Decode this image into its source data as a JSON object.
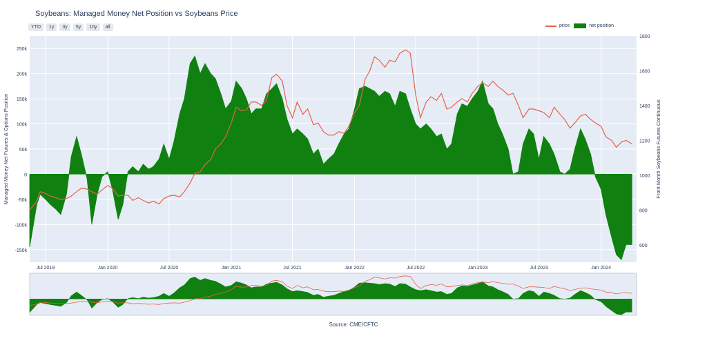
{
  "chart_data": {
    "type": "area",
    "title": "Soybeans: Managed Money Net Position vs Soybeans Price",
    "ylabel": "Managed Money Net Futures & Options Position",
    "y2label": "Front Month Soybeans Futures Continuous",
    "ylim": [
      -175000,
      275000
    ],
    "y2lim": [
      500,
      1800
    ],
    "y_ticks": [
      -150000,
      -100000,
      -50000,
      0,
      50000,
      100000,
      150000,
      200000,
      250000
    ],
    "y_tick_labels": [
      "-150k",
      "-100k",
      "-50k",
      "0",
      "50k",
      "100k",
      "150k",
      "200k",
      "250k"
    ],
    "y2_ticks": [
      600,
      800,
      1000,
      1200,
      1400,
      1600,
      1800
    ],
    "x_range": [
      "2019-05-15",
      "2024-04-15"
    ],
    "x_ticks": [
      "2019-07-01",
      "2020-01-01",
      "2020-07-01",
      "2021-01-01",
      "2021-07-01",
      "2022-01-01",
      "2022-07-01",
      "2023-01-01",
      "2023-07-01",
      "2024-01-01"
    ],
    "x_tick_labels": [
      "Jul 2019",
      "Jan 2020",
      "Jul 2020",
      "Jan 2021",
      "Jul 2021",
      "Jan 2022",
      "Jul 2022",
      "Jan 2023",
      "Jul 2023",
      "Jan 2024"
    ],
    "legend_position": "top-right",
    "grid": true,
    "series": [
      {
        "name": "price",
        "color": "#e8614a",
        "points": [
          [
            "2019-05-15",
            800
          ],
          [
            "2019-06-05",
            850
          ],
          [
            "2019-06-15",
            905
          ],
          [
            "2019-07-01",
            895
          ],
          [
            "2019-07-15",
            880
          ],
          [
            "2019-08-01",
            870
          ],
          [
            "2019-08-15",
            860
          ],
          [
            "2019-09-01",
            865
          ],
          [
            "2019-09-15",
            880
          ],
          [
            "2019-10-01",
            905
          ],
          [
            "2019-10-15",
            925
          ],
          [
            "2019-11-01",
            920
          ],
          [
            "2019-11-15",
            905
          ],
          [
            "2019-12-01",
            890
          ],
          [
            "2019-12-15",
            915
          ],
          [
            "2020-01-01",
            940
          ],
          [
            "2020-01-15",
            925
          ],
          [
            "2020-02-01",
            880
          ],
          [
            "2020-02-15",
            885
          ],
          [
            "2020-03-01",
            885
          ],
          [
            "2020-03-15",
            855
          ],
          [
            "2020-04-01",
            870
          ],
          [
            "2020-04-15",
            855
          ],
          [
            "2020-05-01",
            840
          ],
          [
            "2020-05-15",
            850
          ],
          [
            "2020-06-01",
            835
          ],
          [
            "2020-06-15",
            865
          ],
          [
            "2020-07-01",
            880
          ],
          [
            "2020-07-15",
            885
          ],
          [
            "2020-08-01",
            875
          ],
          [
            "2020-08-15",
            905
          ],
          [
            "2020-09-01",
            955
          ],
          [
            "2020-09-15",
            1010
          ],
          [
            "2020-10-01",
            1020
          ],
          [
            "2020-10-15",
            1060
          ],
          [
            "2020-11-01",
            1090
          ],
          [
            "2020-11-15",
            1150
          ],
          [
            "2020-12-01",
            1180
          ],
          [
            "2020-12-15",
            1220
          ],
          [
            "2021-01-01",
            1300
          ],
          [
            "2021-01-15",
            1390
          ],
          [
            "2021-02-01",
            1370
          ],
          [
            "2021-02-15",
            1375
          ],
          [
            "2021-03-01",
            1420
          ],
          [
            "2021-03-15",
            1420
          ],
          [
            "2021-04-01",
            1400
          ],
          [
            "2021-04-15",
            1430
          ],
          [
            "2021-05-01",
            1560
          ],
          [
            "2021-05-15",
            1580
          ],
          [
            "2021-06-01",
            1540
          ],
          [
            "2021-06-15",
            1400
          ],
          [
            "2021-07-01",
            1330
          ],
          [
            "2021-07-15",
            1420
          ],
          [
            "2021-08-01",
            1350
          ],
          [
            "2021-08-15",
            1380
          ],
          [
            "2021-09-01",
            1290
          ],
          [
            "2021-09-15",
            1300
          ],
          [
            "2021-10-01",
            1250
          ],
          [
            "2021-10-15",
            1230
          ],
          [
            "2021-11-01",
            1230
          ],
          [
            "2021-11-15",
            1250
          ],
          [
            "2021-12-01",
            1240
          ],
          [
            "2021-12-15",
            1280
          ],
          [
            "2022-01-01",
            1360
          ],
          [
            "2022-01-15",
            1400
          ],
          [
            "2022-02-01",
            1550
          ],
          [
            "2022-02-15",
            1600
          ],
          [
            "2022-03-01",
            1680
          ],
          [
            "2022-03-15",
            1660
          ],
          [
            "2022-04-01",
            1620
          ],
          [
            "2022-04-15",
            1660
          ],
          [
            "2022-05-01",
            1650
          ],
          [
            "2022-05-15",
            1700
          ],
          [
            "2022-06-01",
            1720
          ],
          [
            "2022-06-15",
            1700
          ],
          [
            "2022-07-01",
            1460
          ],
          [
            "2022-07-15",
            1330
          ],
          [
            "2022-08-01",
            1420
          ],
          [
            "2022-08-15",
            1450
          ],
          [
            "2022-09-01",
            1430
          ],
          [
            "2022-09-15",
            1470
          ],
          [
            "2022-10-01",
            1380
          ],
          [
            "2022-10-15",
            1390
          ],
          [
            "2022-11-01",
            1420
          ],
          [
            "2022-11-15",
            1440
          ],
          [
            "2022-12-01",
            1420
          ],
          [
            "2022-12-15",
            1470
          ],
          [
            "2023-01-01",
            1510
          ],
          [
            "2023-01-15",
            1530
          ],
          [
            "2023-02-01",
            1510
          ],
          [
            "2023-02-15",
            1540
          ],
          [
            "2023-03-01",
            1510
          ],
          [
            "2023-03-15",
            1490
          ],
          [
            "2023-04-01",
            1460
          ],
          [
            "2023-04-15",
            1470
          ],
          [
            "2023-05-01",
            1400
          ],
          [
            "2023-05-15",
            1330
          ],
          [
            "2023-06-01",
            1380
          ],
          [
            "2023-06-15",
            1380
          ],
          [
            "2023-07-01",
            1370
          ],
          [
            "2023-07-15",
            1360
          ],
          [
            "2023-08-01",
            1330
          ],
          [
            "2023-08-15",
            1390
          ],
          [
            "2023-09-01",
            1350
          ],
          [
            "2023-09-15",
            1320
          ],
          [
            "2023-10-01",
            1270
          ],
          [
            "2023-10-15",
            1300
          ],
          [
            "2023-11-01",
            1340
          ],
          [
            "2023-11-15",
            1350
          ],
          [
            "2023-12-01",
            1320
          ],
          [
            "2023-12-15",
            1300
          ],
          [
            "2024-01-01",
            1280
          ],
          [
            "2024-01-15",
            1220
          ],
          [
            "2024-02-01",
            1200
          ],
          [
            "2024-02-15",
            1160
          ],
          [
            "2024-03-01",
            1190
          ],
          [
            "2024-03-15",
            1200
          ],
          [
            "2024-04-01",
            1180
          ]
        ]
      },
      {
        "name": "net position",
        "color": "#108010",
        "points": [
          [
            "2019-05-15",
            -145000
          ],
          [
            "2019-06-05",
            -60000
          ],
          [
            "2019-06-15",
            -40000
          ],
          [
            "2019-07-01",
            -50000
          ],
          [
            "2019-07-15",
            -60000
          ],
          [
            "2019-08-01",
            -70000
          ],
          [
            "2019-08-15",
            -80000
          ],
          [
            "2019-09-01",
            -40000
          ],
          [
            "2019-09-15",
            35000
          ],
          [
            "2019-10-01",
            75000
          ],
          [
            "2019-10-15",
            40000
          ],
          [
            "2019-11-01",
            -10000
          ],
          [
            "2019-11-15",
            -100000
          ],
          [
            "2019-12-01",
            -40000
          ],
          [
            "2019-12-15",
            -5000
          ],
          [
            "2020-01-01",
            5000
          ],
          [
            "2020-01-15",
            -30000
          ],
          [
            "2020-02-01",
            -90000
          ],
          [
            "2020-02-15",
            -60000
          ],
          [
            "2020-03-01",
            5000
          ],
          [
            "2020-03-15",
            15000
          ],
          [
            "2020-04-01",
            5000
          ],
          [
            "2020-04-15",
            20000
          ],
          [
            "2020-05-01",
            10000
          ],
          [
            "2020-05-15",
            15000
          ],
          [
            "2020-06-01",
            30000
          ],
          [
            "2020-06-15",
            60000
          ],
          [
            "2020-07-01",
            30000
          ],
          [
            "2020-07-15",
            65000
          ],
          [
            "2020-08-01",
            120000
          ],
          [
            "2020-08-15",
            150000
          ],
          [
            "2020-09-01",
            220000
          ],
          [
            "2020-09-15",
            235000
          ],
          [
            "2020-10-01",
            200000
          ],
          [
            "2020-10-15",
            220000
          ],
          [
            "2020-11-01",
            200000
          ],
          [
            "2020-11-15",
            190000
          ],
          [
            "2020-12-01",
            160000
          ],
          [
            "2020-12-15",
            130000
          ],
          [
            "2021-01-01",
            145000
          ],
          [
            "2021-01-15",
            185000
          ],
          [
            "2021-02-01",
            170000
          ],
          [
            "2021-02-15",
            150000
          ],
          [
            "2021-03-01",
            120000
          ],
          [
            "2021-03-15",
            130000
          ],
          [
            "2021-04-01",
            130000
          ],
          [
            "2021-04-15",
            160000
          ],
          [
            "2021-05-01",
            170000
          ],
          [
            "2021-05-15",
            180000
          ],
          [
            "2021-06-01",
            150000
          ],
          [
            "2021-06-15",
            110000
          ],
          [
            "2021-07-01",
            80000
          ],
          [
            "2021-07-15",
            90000
          ],
          [
            "2021-08-01",
            80000
          ],
          [
            "2021-08-15",
            70000
          ],
          [
            "2021-09-01",
            40000
          ],
          [
            "2021-09-15",
            50000
          ],
          [
            "2021-10-01",
            20000
          ],
          [
            "2021-10-15",
            30000
          ],
          [
            "2021-11-01",
            40000
          ],
          [
            "2021-11-15",
            60000
          ],
          [
            "2021-12-01",
            80000
          ],
          [
            "2021-12-15",
            90000
          ],
          [
            "2022-01-01",
            130000
          ],
          [
            "2022-01-15",
            170000
          ],
          [
            "2022-02-01",
            175000
          ],
          [
            "2022-02-15",
            170000
          ],
          [
            "2022-03-01",
            165000
          ],
          [
            "2022-03-15",
            155000
          ],
          [
            "2022-04-01",
            165000
          ],
          [
            "2022-04-15",
            160000
          ],
          [
            "2022-05-01",
            135000
          ],
          [
            "2022-05-15",
            165000
          ],
          [
            "2022-06-01",
            160000
          ],
          [
            "2022-06-15",
            130000
          ],
          [
            "2022-07-01",
            100000
          ],
          [
            "2022-07-15",
            90000
          ],
          [
            "2022-08-01",
            100000
          ],
          [
            "2022-08-15",
            90000
          ],
          [
            "2022-09-01",
            75000
          ],
          [
            "2022-09-15",
            80000
          ],
          [
            "2022-10-01",
            50000
          ],
          [
            "2022-10-15",
            60000
          ],
          [
            "2022-11-01",
            120000
          ],
          [
            "2022-11-15",
            140000
          ],
          [
            "2022-12-01",
            135000
          ],
          [
            "2022-12-15",
            150000
          ],
          [
            "2023-01-01",
            165000
          ],
          [
            "2023-01-15",
            185000
          ],
          [
            "2023-02-01",
            140000
          ],
          [
            "2023-02-15",
            130000
          ],
          [
            "2023-03-01",
            100000
          ],
          [
            "2023-03-15",
            80000
          ],
          [
            "2023-04-01",
            50000
          ],
          [
            "2023-04-15",
            0
          ],
          [
            "2023-05-01",
            5000
          ],
          [
            "2023-05-15",
            60000
          ],
          [
            "2023-06-01",
            90000
          ],
          [
            "2023-06-15",
            80000
          ],
          [
            "2023-07-01",
            30000
          ],
          [
            "2023-07-15",
            75000
          ],
          [
            "2023-08-01",
            60000
          ],
          [
            "2023-08-15",
            40000
          ],
          [
            "2023-09-01",
            5000
          ],
          [
            "2023-09-15",
            0
          ],
          [
            "2023-10-01",
            10000
          ],
          [
            "2023-10-15",
            50000
          ],
          [
            "2023-11-01",
            90000
          ],
          [
            "2023-11-15",
            70000
          ],
          [
            "2023-12-01",
            40000
          ],
          [
            "2023-12-15",
            -5000
          ],
          [
            "2024-01-01",
            -30000
          ],
          [
            "2024-01-15",
            -80000
          ],
          [
            "2024-02-01",
            -125000
          ],
          [
            "2024-02-15",
            -160000
          ],
          [
            "2024-03-01",
            -170000
          ],
          [
            "2024-03-15",
            -140000
          ],
          [
            "2024-04-01",
            -140000
          ]
        ]
      }
    ],
    "range_slider": {
      "visible": true,
      "selected_range": [
        "2019-05-15",
        "2024-04-15"
      ]
    }
  },
  "range_buttons": [
    "YTD",
    "1y",
    "3y",
    "5y",
    "10y",
    "all"
  ],
  "source": "Source: CME/CFTC"
}
